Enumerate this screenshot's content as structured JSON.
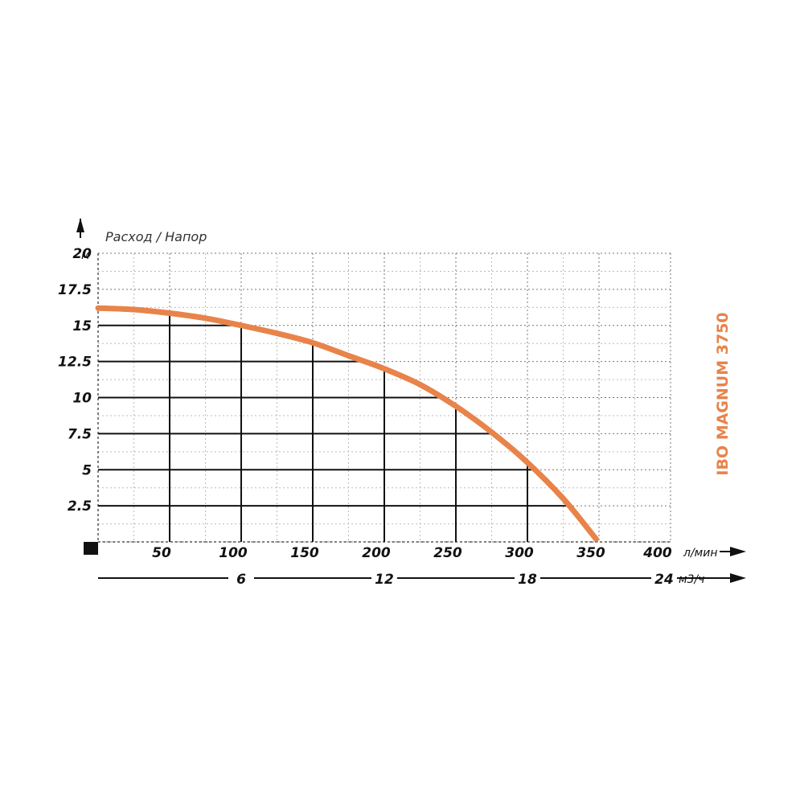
{
  "chart_data": {
    "type": "line",
    "title": "Расход / Напор",
    "model": "IBO MAGNUM 3750",
    "y_unit": "м",
    "x_unit": "л/мин",
    "x2_unit": "м3/ч",
    "ylim": [
      0,
      20
    ],
    "xlim": [
      0,
      400
    ],
    "y_ticks": [
      {
        "value": 2.5,
        "label": "2.5"
      },
      {
        "value": 5,
        "label": "5"
      },
      {
        "value": 7.5,
        "label": "7.5"
      },
      {
        "value": 10,
        "label": "10"
      },
      {
        "value": 12.5,
        "label": "12.5"
      },
      {
        "value": 15,
        "label": "15"
      },
      {
        "value": 17.5,
        "label": "17.5"
      },
      {
        "value": 20,
        "label": "20"
      }
    ],
    "x_ticks": [
      {
        "value": 50,
        "label": "50"
      },
      {
        "value": 100,
        "label": "100"
      },
      {
        "value": 150,
        "label": "150"
      },
      {
        "value": 200,
        "label": "200"
      },
      {
        "value": 250,
        "label": "250"
      },
      {
        "value": 300,
        "label": "300"
      },
      {
        "value": 350,
        "label": "350"
      },
      {
        "value": 400,
        "label": "400"
      }
    ],
    "x2_ticks": [
      {
        "value": 6,
        "label": "6"
      },
      {
        "value": 12,
        "label": "12"
      },
      {
        "value": 18,
        "label": "18"
      },
      {
        "value": 24,
        "label": "24"
      }
    ],
    "x2lim": [
      0,
      24
    ],
    "grid": "dotted",
    "series": [
      {
        "color": "#e8834a",
        "x": [
          0,
          25,
          50,
          75,
          100,
          125,
          150,
          175,
          200,
          225,
          250,
          275,
          300,
          325,
          348
        ],
        "y": [
          16.2,
          16.1,
          15.85,
          15.5,
          15.0,
          14.45,
          13.8,
          12.9,
          12.0,
          10.9,
          9.4,
          7.6,
          5.5,
          3.0,
          0.2
        ]
      }
    ],
    "colors": {
      "curve": "#e8834a",
      "model_text": "#e8834a",
      "axis": "#111111",
      "grid": "#999999"
    }
  }
}
